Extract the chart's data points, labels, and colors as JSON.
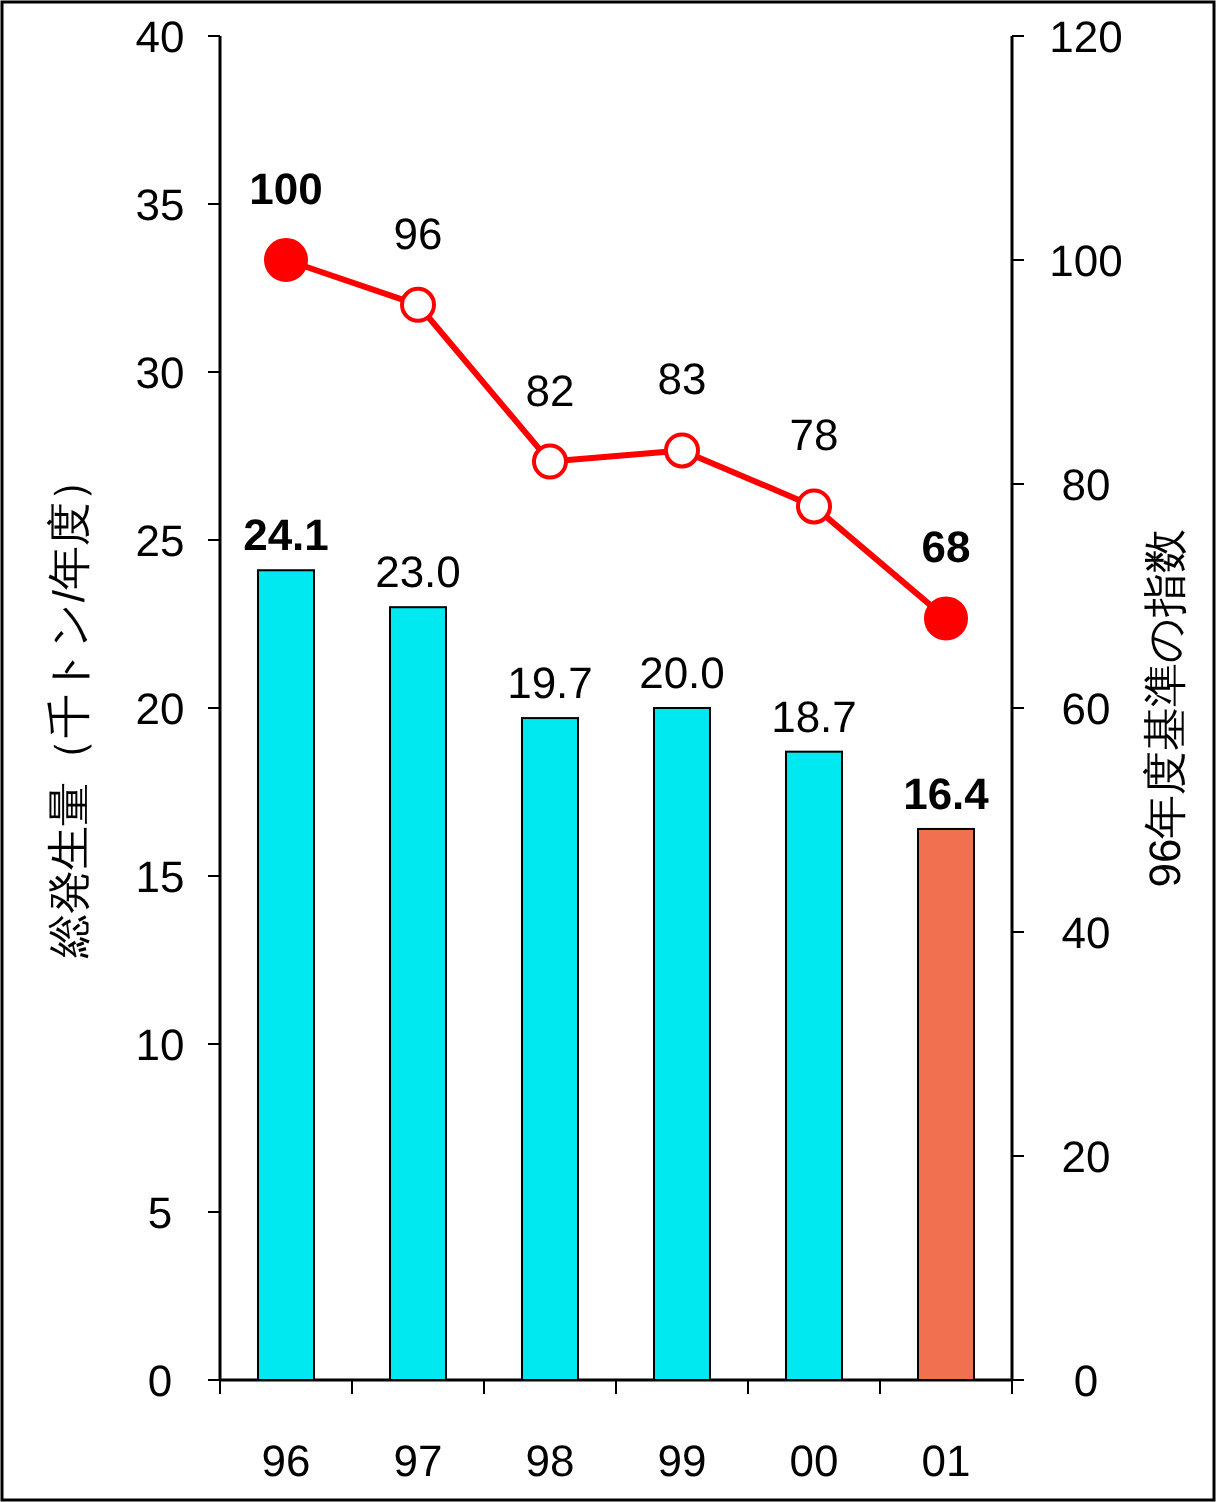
{
  "chart_data": {
    "type": "bar",
    "categories": [
      "96",
      "97",
      "98",
      "99",
      "00",
      "01"
    ],
    "ylabel": "総発生量（千トン/年度）",
    "y2label": "96年度基準の指数",
    "ylim": [
      0,
      40
    ],
    "yticks": [
      0,
      5,
      10,
      15,
      20,
      25,
      30,
      35,
      40
    ],
    "y2lim": [
      0,
      120
    ],
    "y2ticks": [
      0,
      20,
      40,
      60,
      80,
      100,
      120
    ],
    "series": [
      {
        "colors": [
          "#00e8f0",
          "#00e8f0",
          "#00e8f0",
          "#00e8f0",
          "#00e8f0",
          "#f07050"
        ],
        "values": [
          24.1,
          23.0,
          19.7,
          20.0,
          18.7,
          16.4
        ],
        "value_labels": [
          "24.1",
          "23.0",
          "19.7",
          "20.0",
          "18.7",
          "16.4"
        ]
      },
      {
        "type": "line",
        "axis": "y2",
        "color": "#ff0000",
        "values": [
          100,
          96,
          82,
          83,
          78,
          68
        ]
      }
    ],
    "data_labels": true,
    "marker": "circle",
    "line_style": "solid",
    "grid": false
  }
}
